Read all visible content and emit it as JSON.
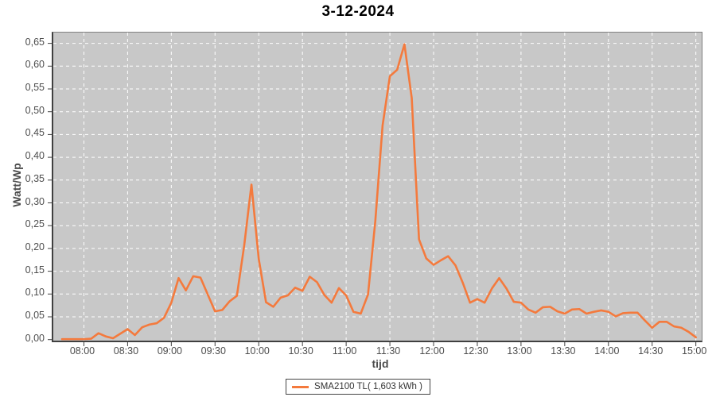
{
  "title": "3-12-2024",
  "legend": {
    "label": "SMA2100 TL( 1,603 kWh )"
  },
  "colors": {
    "line": "#f47a3d",
    "plot_background": "#c8c8c8",
    "grid": "#ffffff",
    "tick_text": "#4d4d4d",
    "title_text": "#000000",
    "axis": "#404040"
  },
  "chart_data": {
    "type": "line",
    "title": "3-12-2024",
    "xlabel": "tijd",
    "ylabel": "Watt/Wp",
    "ylim": [
      0,
      0.674
    ],
    "x_range": [
      "07:39",
      "15:04"
    ],
    "grid": true,
    "grid_style": "white dashed on gray plot",
    "legend_position": "bottom-center",
    "y_ticks": [
      0.0,
      0.05,
      0.1,
      0.15,
      0.2,
      0.25,
      0.3,
      0.35,
      0.4,
      0.45,
      0.5,
      0.55,
      0.6,
      0.65
    ],
    "y_tick_labels": [
      "0,00",
      "0,05",
      "0,10",
      "0,15",
      "0,20",
      "0,25",
      "0,30",
      "0,35",
      "0,40",
      "0,45",
      "0,50",
      "0,55",
      "0,60",
      "0,65"
    ],
    "x_ticks": [
      "08:00",
      "08:30",
      "09:00",
      "09:30",
      "10:00",
      "10:30",
      "11:00",
      "11:30",
      "12:00",
      "12:30",
      "13:00",
      "13:30",
      "14:00",
      "14:30",
      "15:00"
    ],
    "series": [
      {
        "name": "SMA2100 TL( 1,603 kWh )",
        "color": "#f47a3d",
        "x": [
          "07:45",
          "07:50",
          "07:55",
          "08:00",
          "08:05",
          "08:10",
          "08:15",
          "08:20",
          "08:25",
          "08:30",
          "08:35",
          "08:40",
          "08:45",
          "08:50",
          "08:55",
          "09:00",
          "09:05",
          "09:10",
          "09:15",
          "09:20",
          "09:25",
          "09:30",
          "09:35",
          "09:40",
          "09:45",
          "09:50",
          "09:55",
          "10:00",
          "10:05",
          "10:10",
          "10:15",
          "10:20",
          "10:25",
          "10:30",
          "10:35",
          "10:40",
          "10:45",
          "10:50",
          "10:55",
          "11:00",
          "11:05",
          "11:10",
          "11:15",
          "11:20",
          "11:25",
          "11:30",
          "11:35",
          "11:40",
          "11:45",
          "11:50",
          "11:55",
          "12:00",
          "12:05",
          "12:10",
          "12:15",
          "12:20",
          "12:25",
          "12:30",
          "12:35",
          "12:40",
          "12:45",
          "12:50",
          "12:55",
          "13:00",
          "13:05",
          "13:10",
          "13:15",
          "13:20",
          "13:25",
          "13:30",
          "13:35",
          "13:40",
          "13:45",
          "13:50",
          "13:55",
          "14:00",
          "14:05",
          "14:10",
          "14:15",
          "14:20",
          "14:25",
          "14:30",
          "14:35",
          "14:40",
          "14:45",
          "14:50",
          "14:55",
          "15:00"
        ],
        "values": [
          0.001,
          0.001,
          0.001,
          0.001,
          0.002,
          0.014,
          0.007,
          0.003,
          0.013,
          0.023,
          0.01,
          0.027,
          0.033,
          0.036,
          0.048,
          0.081,
          0.135,
          0.108,
          0.139,
          0.136,
          0.099,
          0.062,
          0.065,
          0.084,
          0.096,
          0.206,
          0.34,
          0.177,
          0.082,
          0.072,
          0.092,
          0.097,
          0.114,
          0.107,
          0.138,
          0.126,
          0.098,
          0.081,
          0.113,
          0.097,
          0.061,
          0.057,
          0.099,
          0.26,
          0.47,
          0.578,
          0.592,
          0.648,
          0.53,
          0.22,
          0.178,
          0.164,
          0.174,
          0.183,
          0.163,
          0.125,
          0.081,
          0.089,
          0.081,
          0.112,
          0.135,
          0.112,
          0.083,
          0.081,
          0.066,
          0.059,
          0.071,
          0.072,
          0.062,
          0.057,
          0.066,
          0.067,
          0.057,
          0.061,
          0.064,
          0.061,
          0.051,
          0.058,
          0.059,
          0.059,
          0.042,
          0.026,
          0.039,
          0.039,
          0.029,
          0.026,
          0.017,
          0.005
        ]
      }
    ]
  }
}
